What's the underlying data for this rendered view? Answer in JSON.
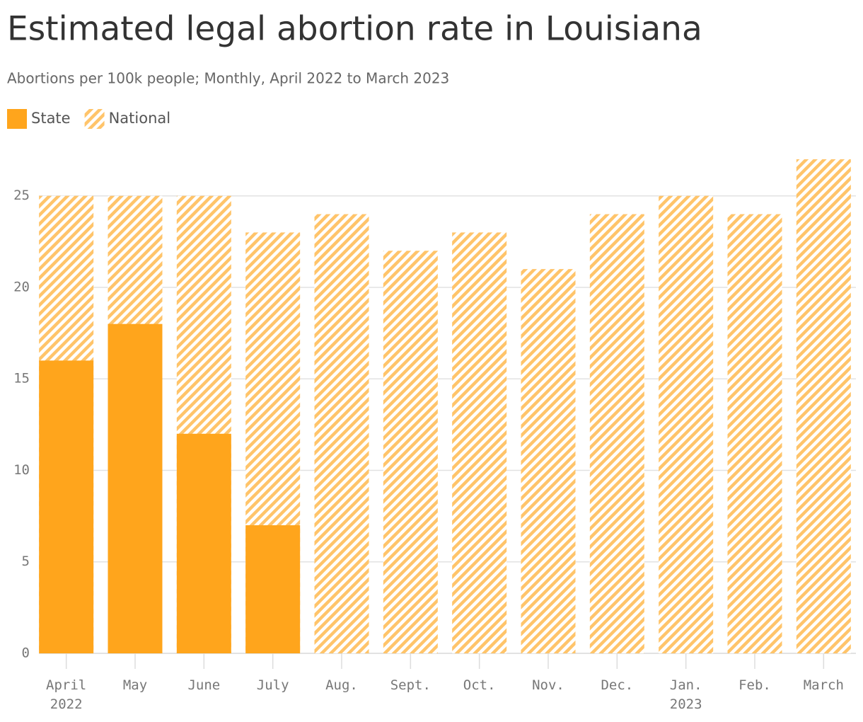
{
  "chart_data": {
    "type": "bar",
    "title": "Estimated legal abortion rate in Louisiana",
    "subtitle": "Abortions per 100k people; Monthly, April 2022 to March 2023",
    "categories": [
      "April 2022",
      "May",
      "June",
      "July",
      "Aug.",
      "Sept.",
      "Oct.",
      "Nov.",
      "Dec.",
      "Jan. 2023",
      "Feb.",
      "March"
    ],
    "series": [
      {
        "name": "State",
        "color": "#ffa51c",
        "pattern": "solid",
        "values": [
          16,
          18,
          12,
          7,
          null,
          null,
          null,
          null,
          null,
          null,
          null,
          null
        ]
      },
      {
        "name": "National",
        "color": "#ffc46a",
        "pattern": "hatch",
        "values": [
          25,
          25,
          25,
          23,
          24,
          22,
          23,
          21,
          24,
          25,
          24,
          27
        ]
      }
    ],
    "ylim": [
      0,
      27
    ],
    "yticks": [
      0,
      5,
      10,
      15,
      20,
      25
    ],
    "grid": true
  }
}
